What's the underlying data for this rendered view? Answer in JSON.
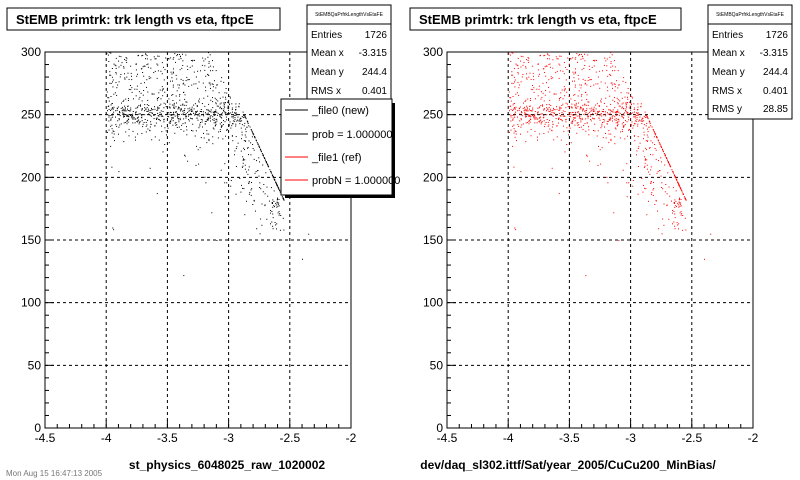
{
  "chart_data": [
    {
      "type": "scatter",
      "title": "StEMB primtrk: trk length vs eta, ftpcE",
      "xlabel": "st_physics_6048025_raw_1020002",
      "xlim": [
        -4.5,
        -2
      ],
      "ylim": [
        0,
        300
      ],
      "x_ticks": [
        "-4.5",
        "-4",
        "-3.5",
        "-3",
        "-2.5",
        "-2"
      ],
      "y_ticks": [
        "0",
        "50",
        "100",
        "150",
        "200",
        "250",
        "300"
      ],
      "grid": true,
      "marker_color": "#000000",
      "stats": {
        "name": "StEMBQaPrfrkLengthVsEtaFE",
        "rows": [
          {
            "label": "Entries",
            "value": "1726"
          },
          {
            "label": "Mean x",
            "value": "-3.315"
          },
          {
            "label": "Mean y",
            "value": "244.4"
          },
          {
            "label": "RMS x",
            "value": "0.401"
          }
        ]
      },
      "legend": {
        "placement": "top-right",
        "entries": [
          {
            "label": "_file0 (new)",
            "color": "#000000"
          },
          {
            "label": "prob = 1.000000",
            "color": "#000000"
          },
          {
            "label": "_file1 (ref)",
            "color": "#ff0000"
          },
          {
            "label": "probN = 1.000000",
            "color": "#ff0000"
          }
        ]
      },
      "footer": "Mon Aug 15 16:47:13 2005"
    },
    {
      "type": "scatter",
      "title": "StEMB primtrk: trk length vs eta, ftpcE",
      "xlabel": "dev/daq_sl302.ittf/Sat/year_2005/CuCu200_MinBias/",
      "xlim": [
        -4.5,
        -2
      ],
      "ylim": [
        0,
        300
      ],
      "x_ticks": [
        "-4.5",
        "-4",
        "-3.5",
        "-3",
        "-2.5",
        "-2"
      ],
      "y_ticks": [
        "0",
        "50",
        "100",
        "150",
        "200",
        "250",
        "300"
      ],
      "grid": true,
      "marker_color": "#ff0000",
      "stats": {
        "name": "StEMBQaPrfrkLengthVsEtaFE",
        "rows": [
          {
            "label": "Entries",
            "value": "1726"
          },
          {
            "label": "Mean x",
            "value": "-3.315"
          },
          {
            "label": "Mean y",
            "value": "244.4"
          },
          {
            "label": "RMS x",
            "value": "0.401"
          },
          {
            "label": "RMS y",
            "value": "28.85"
          }
        ]
      }
    }
  ]
}
